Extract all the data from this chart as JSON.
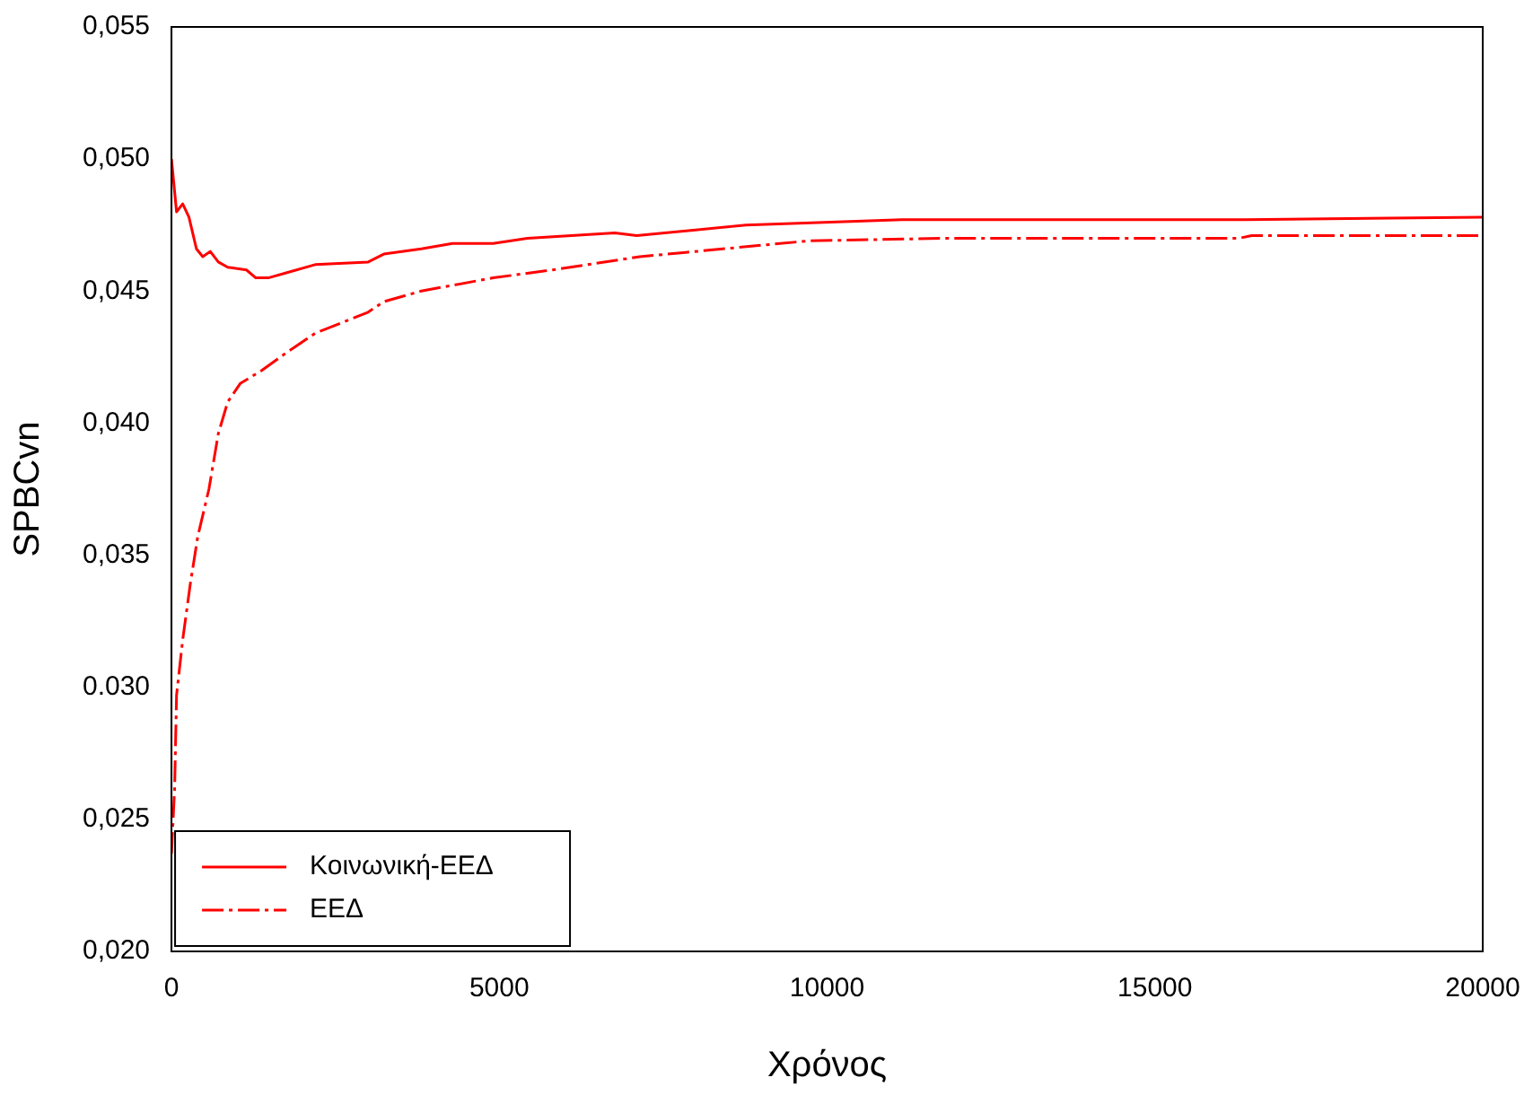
{
  "chart_data": {
    "type": "line",
    "xlabel": "Χρόνος",
    "ylabel": "SPBCvn",
    "xlim": [
      0,
      20000
    ],
    "xticks": [
      0,
      5000,
      10000,
      15000,
      20000
    ],
    "ylim": [
      0.02,
      0.055
    ],
    "yticks": [
      {
        "value": 0.02,
        "label": "0,020"
      },
      {
        "value": 0.025,
        "label": "0,025"
      },
      {
        "value": 0.03,
        "label": "0.030"
      },
      {
        "value": 0.035,
        "label": "0,035"
      },
      {
        "value": 0.04,
        "label": "0,040"
      },
      {
        "value": 0.045,
        "label": "0,045"
      },
      {
        "value": 0.05,
        "label": "0,050"
      },
      {
        "value": 0.055,
        "label": "0,055"
      }
    ],
    "grid": false,
    "legend": "bottom left",
    "marker": "none",
    "series": [
      {
        "name": "Κοινωνική-ΕΕΔ",
        "color": "#ff0000",
        "line_style": "solid",
        "x": [
          0,
          77,
          171,
          266,
          380,
          477,
          591,
          714,
          857,
          1143,
          1286,
          1476,
          1762,
          2190,
          3000,
          3238,
          3810,
          4286,
          4905,
          5429,
          6762,
          7095,
          8762,
          11143,
          16381,
          20000
        ],
        "values": [
          0.05,
          0.048,
          0.0483,
          0.0478,
          0.0466,
          0.0463,
          0.0465,
          0.0461,
          0.0459,
          0.0458,
          0.0455,
          0.0455,
          0.0457,
          0.046,
          0.0461,
          0.0464,
          0.0466,
          0.0468,
          0.0468,
          0.047,
          0.0472,
          0.0471,
          0.0475,
          0.0477,
          0.0477,
          0.0478
        ]
      },
      {
        "name": "ΕΕΔ",
        "color": "#ff0000",
        "line_style": "dashed",
        "x": [
          0,
          48,
          77,
          171,
          286,
          400,
          571,
          714,
          857,
          1048,
          1381,
          1714,
          2190,
          3000,
          3238,
          3810,
          4905,
          5810,
          7143,
          9714,
          11810,
          16286,
          16476,
          20000
        ],
        "values": [
          0.0237,
          0.0262,
          0.0297,
          0.0318,
          0.0339,
          0.0357,
          0.0375,
          0.0396,
          0.0408,
          0.0415,
          0.042,
          0.0426,
          0.0434,
          0.0442,
          0.0446,
          0.045,
          0.0455,
          0.0458,
          0.0463,
          0.0469,
          0.047,
          0.047,
          0.0471,
          0.0471
        ]
      }
    ]
  }
}
